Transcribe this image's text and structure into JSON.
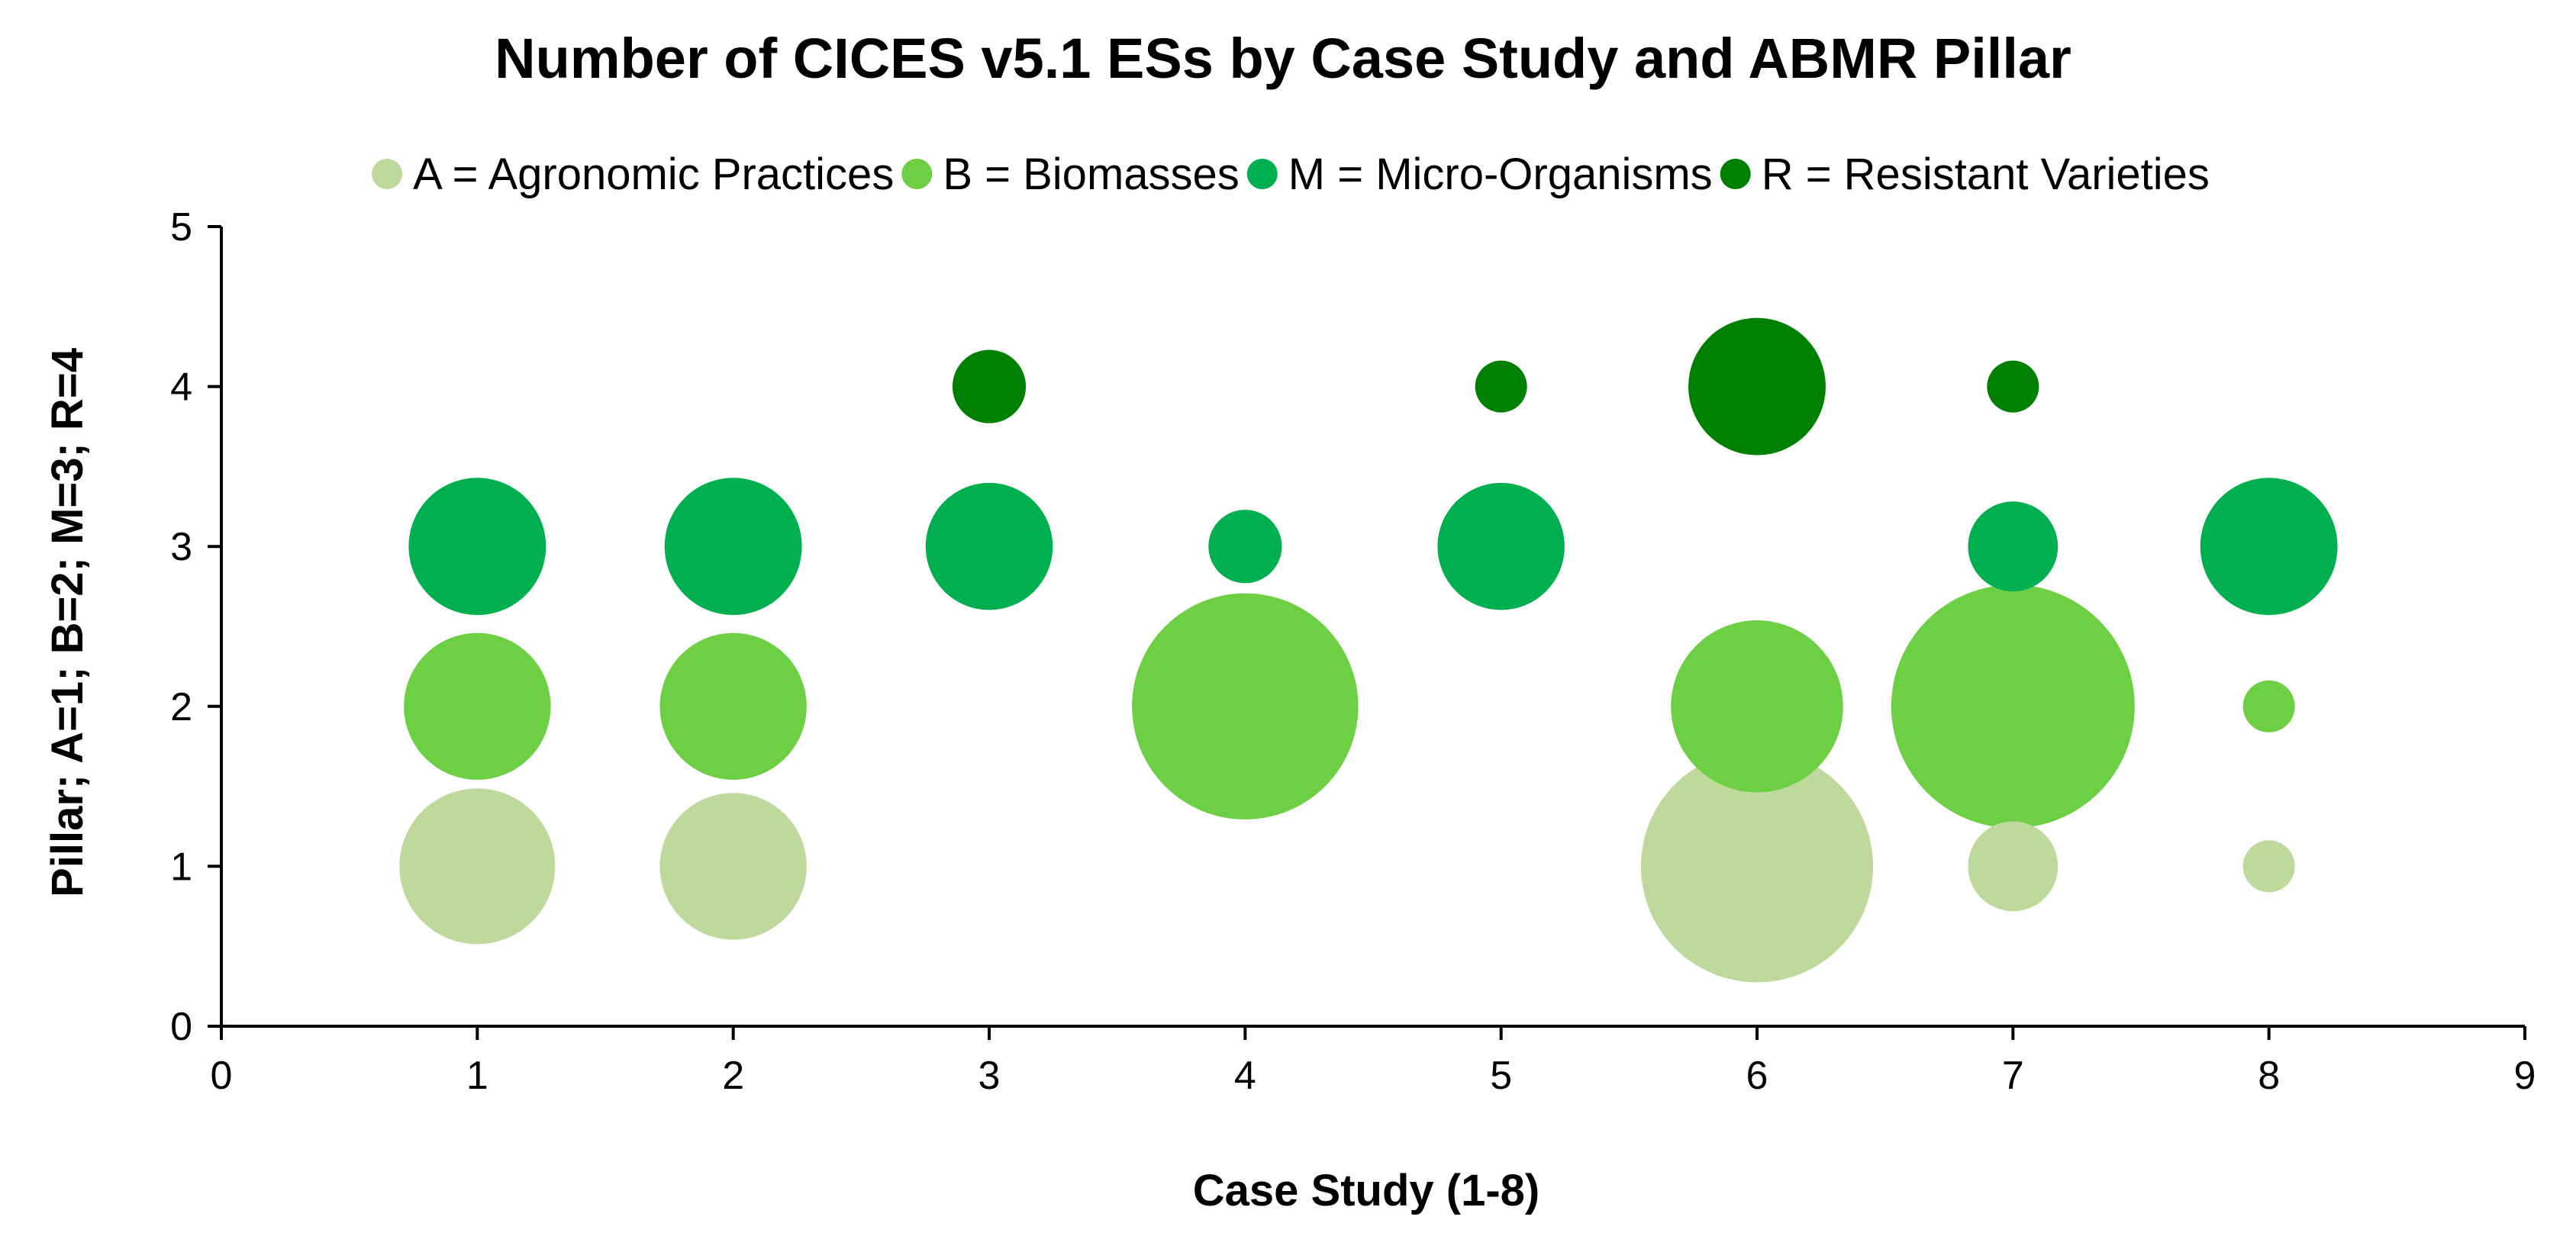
{
  "chart_data": {
    "type": "scatter",
    "subtype": "bubble",
    "title": "Number of CICES v5.1 ESs by Case Study and ABMR Pillar",
    "xlabel": "Case Study (1-8)",
    "ylabel": "Pillar; A=1; B=2; M=3; R=4",
    "xlim": [
      0,
      9
    ],
    "ylim": [
      0,
      5
    ],
    "xticks": [
      0,
      1,
      2,
      3,
      4,
      5,
      6,
      7,
      8,
      9
    ],
    "yticks": [
      0,
      1,
      2,
      3,
      4,
      5
    ],
    "grid": false,
    "legend_position": "top",
    "series": [
      {
        "name": "A = Agronomic Practices",
        "color": "#bdd99b",
        "points": [
          {
            "x": 1,
            "y": 1,
            "size": 9
          },
          {
            "x": 2,
            "y": 1,
            "size": 8
          },
          {
            "x": 6,
            "y": 1,
            "size": 20
          },
          {
            "x": 7,
            "y": 1,
            "size": 3
          },
          {
            "x": 8,
            "y": 1,
            "size": 1
          }
        ]
      },
      {
        "name": "B = Biomasses",
        "color": "#6dcf43",
        "points": [
          {
            "x": 1,
            "y": 2,
            "size": 8
          },
          {
            "x": 2,
            "y": 2,
            "size": 8
          },
          {
            "x": 4,
            "y": 2,
            "size": 19
          },
          {
            "x": 6,
            "y": 2,
            "size": 11
          },
          {
            "x": 7,
            "y": 2,
            "size": 22
          },
          {
            "x": 8,
            "y": 2,
            "size": 1
          }
        ]
      },
      {
        "name": "M = Micro-Organisms",
        "color": "#00b050",
        "points": [
          {
            "x": 1,
            "y": 3,
            "size": 7
          },
          {
            "x": 2,
            "y": 3,
            "size": 7
          },
          {
            "x": 3,
            "y": 3,
            "size": 6
          },
          {
            "x": 4,
            "y": 3,
            "size": 2
          },
          {
            "x": 5,
            "y": 3,
            "size": 6
          },
          {
            "x": 7,
            "y": 3,
            "size": 3
          },
          {
            "x": 8,
            "y": 3,
            "size": 7
          }
        ]
      },
      {
        "name": "R = Resistant Varieties",
        "color": "#008000",
        "points": [
          {
            "x": 3,
            "y": 4,
            "size": 2
          },
          {
            "x": 5,
            "y": 4,
            "size": 1
          },
          {
            "x": 6,
            "y": 4,
            "size": 7
          },
          {
            "x": 7,
            "y": 4,
            "size": 1
          }
        ]
      }
    ]
  }
}
